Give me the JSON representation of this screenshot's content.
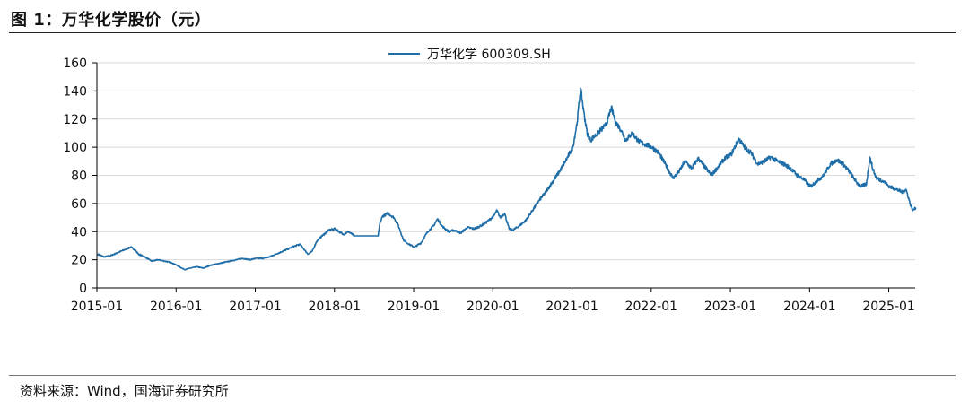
{
  "figure": {
    "title": "图 1：万华化学股价（元）",
    "source": "资料来源：Wind，国海证券研究所"
  },
  "colors": {
    "series": "#1f6ea8",
    "grid": "#d9d9d9",
    "axis": "#000000"
  },
  "chart_data": {
    "type": "line",
    "ylim": [
      0,
      160
    ],
    "yticks": [
      0,
      20,
      40,
      60,
      80,
      100,
      120,
      140,
      160
    ],
    "xlim": [
      "2015-01",
      "2025-05"
    ],
    "xticks": [
      "2015-01",
      "2016-01",
      "2017-01",
      "2018-01",
      "2019-01",
      "2020-01",
      "2021-01",
      "2022-01",
      "2023-01",
      "2024-01",
      "2025-01"
    ],
    "grid": "horizontal",
    "legend_position": "top-center",
    "series": [
      {
        "name": "万华化学 600309.SH",
        "points": [
          [
            "2015-01-05",
            24
          ],
          [
            "2015-02-05",
            22
          ],
          [
            "2015-03-05",
            23
          ],
          [
            "2015-04-05",
            25
          ],
          [
            "2015-05-05",
            27
          ],
          [
            "2015-06-05",
            29
          ],
          [
            "2015-06-25",
            27
          ],
          [
            "2015-07-10",
            24
          ],
          [
            "2015-08-10",
            22
          ],
          [
            "2015-09-10",
            19
          ],
          [
            "2015-10-10",
            20
          ],
          [
            "2015-11-10",
            19
          ],
          [
            "2015-12-10",
            18
          ],
          [
            "2016-01-05",
            16
          ],
          [
            "2016-02-10",
            13
          ],
          [
            "2016-03-05",
            14
          ],
          [
            "2016-04-05",
            15
          ],
          [
            "2016-05-05",
            14
          ],
          [
            "2016-06-05",
            16
          ],
          [
            "2016-07-05",
            17
          ],
          [
            "2016-08-05",
            18
          ],
          [
            "2016-09-05",
            19
          ],
          [
            "2016-10-05",
            20
          ],
          [
            "2016-11-05",
            21
          ],
          [
            "2016-12-05",
            20
          ],
          [
            "2017-01-05",
            21
          ],
          [
            "2017-02-05",
            21
          ],
          [
            "2017-03-05",
            22
          ],
          [
            "2017-04-05",
            24
          ],
          [
            "2017-05-05",
            26
          ],
          [
            "2017-06-05",
            28
          ],
          [
            "2017-07-05",
            30
          ],
          [
            "2017-07-25",
            31
          ],
          [
            "2017-08-15",
            27
          ],
          [
            "2017-09-01",
            24
          ],
          [
            "2017-09-20",
            26
          ],
          [
            "2017-10-10",
            33
          ],
          [
            "2017-11-05",
            37
          ],
          [
            "2017-12-05",
            41
          ],
          [
            "2018-01-05",
            42
          ],
          [
            "2018-02-10",
            38
          ],
          [
            "2018-03-05",
            40
          ],
          [
            "2018-04-01",
            37
          ],
          [
            "2018-05-01",
            37
          ],
          [
            "2018-06-01",
            37
          ],
          [
            "2018-07-01",
            37
          ],
          [
            "2018-07-20",
            37
          ],
          [
            "2018-07-28",
            46
          ],
          [
            "2018-08-10",
            51
          ],
          [
            "2018-09-05",
            53
          ],
          [
            "2018-10-01",
            50
          ],
          [
            "2018-10-20",
            45
          ],
          [
            "2018-11-15",
            34
          ],
          [
            "2018-12-10",
            31
          ],
          [
            "2019-01-05",
            29
          ],
          [
            "2019-02-05",
            32
          ],
          [
            "2019-03-05",
            40
          ],
          [
            "2019-04-01",
            44
          ],
          [
            "2019-04-20",
            49
          ],
          [
            "2019-05-10",
            44
          ],
          [
            "2019-06-10",
            40
          ],
          [
            "2019-07-05",
            41
          ],
          [
            "2019-08-05",
            39
          ],
          [
            "2019-09-05",
            43
          ],
          [
            "2019-10-05",
            42
          ],
          [
            "2019-11-05",
            44
          ],
          [
            "2019-12-05",
            47
          ],
          [
            "2020-01-05",
            51
          ],
          [
            "2020-01-20",
            55
          ],
          [
            "2020-02-05",
            50
          ],
          [
            "2020-02-25",
            53
          ],
          [
            "2020-03-15",
            42
          ],
          [
            "2020-04-01",
            41
          ],
          [
            "2020-05-01",
            44
          ],
          [
            "2020-06-01",
            48
          ],
          [
            "2020-07-01",
            55
          ],
          [
            "2020-08-01",
            62
          ],
          [
            "2020-09-01",
            68
          ],
          [
            "2020-10-01",
            75
          ],
          [
            "2020-11-01",
            82
          ],
          [
            "2020-12-01",
            90
          ],
          [
            "2021-01-05",
            100
          ],
          [
            "2021-01-25",
            118
          ],
          [
            "2021-02-10",
            142
          ],
          [
            "2021-02-25",
            125
          ],
          [
            "2021-03-10",
            110
          ],
          [
            "2021-03-25",
            105
          ],
          [
            "2021-04-15",
            108
          ],
          [
            "2021-05-10",
            112
          ],
          [
            "2021-06-01",
            115
          ],
          [
            "2021-06-15",
            120
          ],
          [
            "2021-06-30",
            128
          ],
          [
            "2021-07-20",
            118
          ],
          [
            "2021-08-15",
            112
          ],
          [
            "2021-09-05",
            105
          ],
          [
            "2021-10-05",
            110
          ],
          [
            "2021-11-05",
            104
          ],
          [
            "2021-12-05",
            102
          ],
          [
            "2022-01-05",
            100
          ],
          [
            "2022-02-05",
            96
          ],
          [
            "2022-03-05",
            88
          ],
          [
            "2022-04-10",
            78
          ],
          [
            "2022-05-05",
            82
          ],
          [
            "2022-06-05",
            90
          ],
          [
            "2022-07-05",
            85
          ],
          [
            "2022-08-05",
            92
          ],
          [
            "2022-09-05",
            86
          ],
          [
            "2022-10-05",
            80
          ],
          [
            "2022-11-05",
            86
          ],
          [
            "2022-12-05",
            92
          ],
          [
            "2023-01-05",
            95
          ],
          [
            "2023-02-10",
            106
          ],
          [
            "2023-03-05",
            100
          ],
          [
            "2023-04-05",
            96
          ],
          [
            "2023-05-05",
            88
          ],
          [
            "2023-06-05",
            90
          ],
          [
            "2023-07-05",
            93
          ],
          [
            "2023-08-05",
            90
          ],
          [
            "2023-09-05",
            88
          ],
          [
            "2023-10-05",
            85
          ],
          [
            "2023-11-05",
            80
          ],
          [
            "2023-12-05",
            77
          ],
          [
            "2024-01-05",
            72
          ],
          [
            "2024-02-05",
            76
          ],
          [
            "2024-03-05",
            80
          ],
          [
            "2024-04-05",
            88
          ],
          [
            "2024-05-05",
            91
          ],
          [
            "2024-06-05",
            88
          ],
          [
            "2024-07-05",
            82
          ],
          [
            "2024-08-05",
            75
          ],
          [
            "2024-08-25",
            72
          ],
          [
            "2024-09-20",
            74
          ],
          [
            "2024-10-05",
            93
          ],
          [
            "2024-10-20",
            84
          ],
          [
            "2024-11-05",
            78
          ],
          [
            "2024-12-05",
            76
          ],
          [
            "2025-01-05",
            72
          ],
          [
            "2025-02-05",
            70
          ],
          [
            "2025-03-05",
            68
          ],
          [
            "2025-03-20",
            70
          ],
          [
            "2025-04-08",
            60
          ],
          [
            "2025-04-20",
            55
          ],
          [
            "2025-05-05",
            57
          ]
        ]
      }
    ]
  }
}
